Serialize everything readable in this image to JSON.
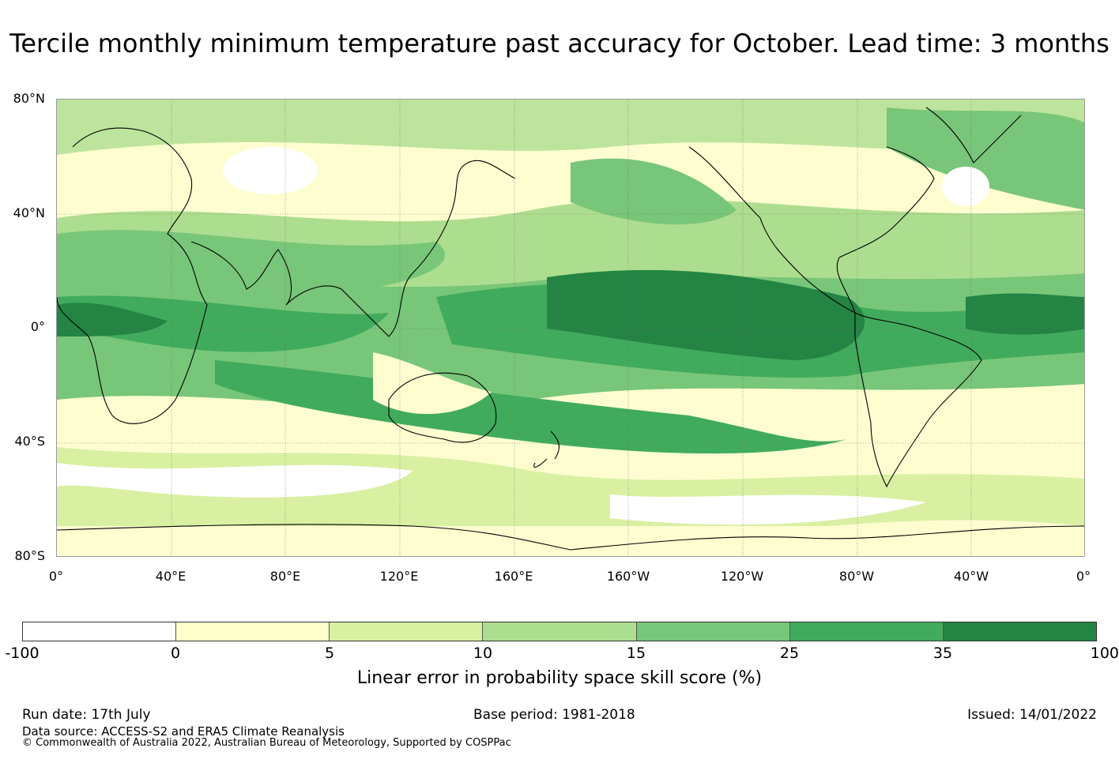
{
  "title": "Tercile monthly minimum temperature past accuracy for October. Lead time: 3 months",
  "map": {
    "latitude_labels": [
      "80°N",
      "40°N",
      "0°",
      "40°S",
      "80°S"
    ],
    "longitude_labels": [
      "0°",
      "40°E",
      "80°E",
      "120°E",
      "160°E",
      "160°W",
      "120°W",
      "80°W",
      "40°W",
      "0°"
    ],
    "grid": true
  },
  "colorbar": {
    "ticks": [
      "-100",
      "0",
      "5",
      "10",
      "15",
      "25",
      "35",
      "100"
    ],
    "colors": [
      "#ffffff",
      "#ffffcc",
      "#d9f0a3",
      "#addd8e",
      "#78c679",
      "#41ab5d",
      "#238443"
    ],
    "label": "Linear error in probability space skill score (%)"
  },
  "footer": {
    "run_date": "Run date: 17th July",
    "base_period": "Base period: 1981-2018",
    "issued": "Issued: 14/01/2022",
    "data_source": "Data source: ACCESS-S2 and ERA5 Climate Reanalysis",
    "copyright": "© Commonwealth of Australia 2022, Australian Bureau of Meteorology, Supported by COSPPac"
  }
}
